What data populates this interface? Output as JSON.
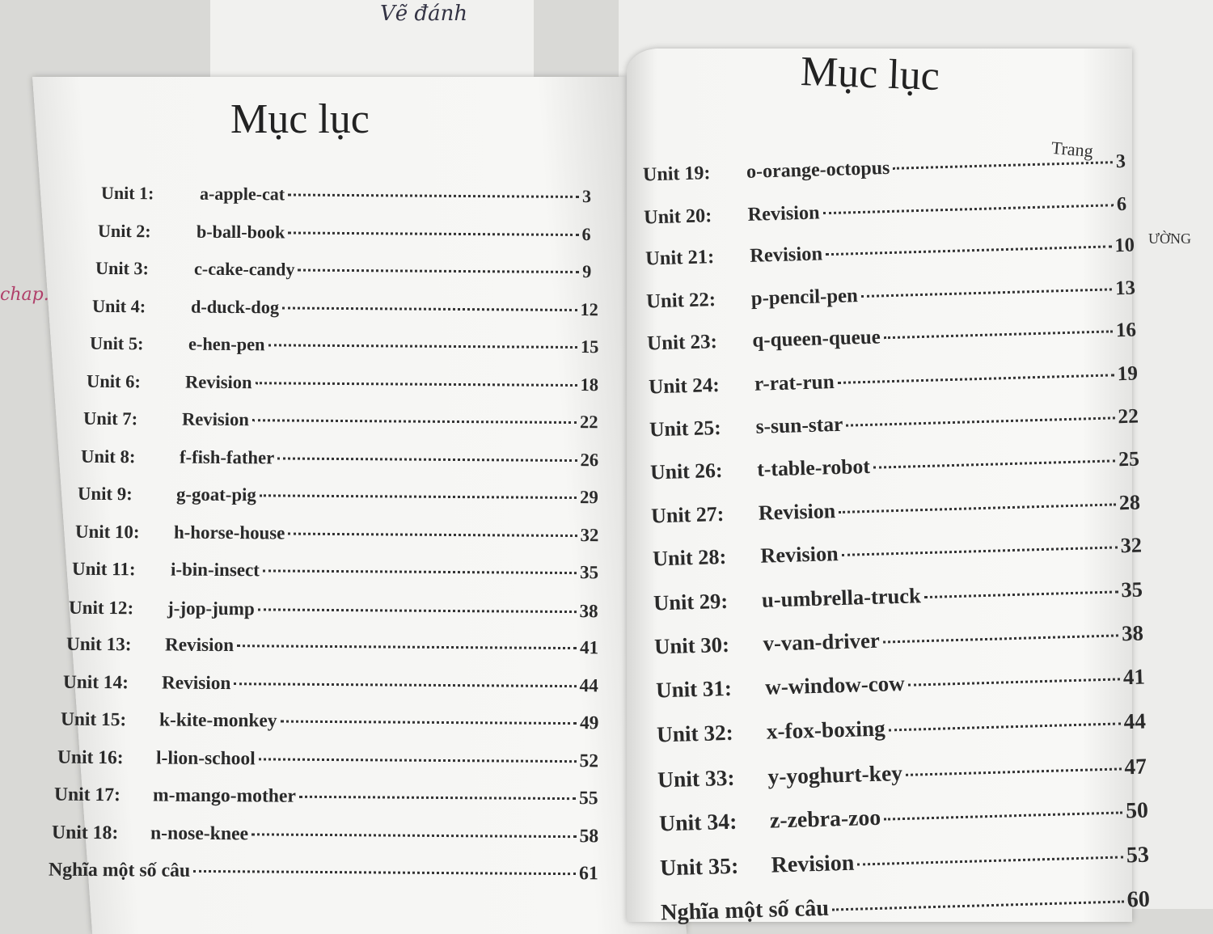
{
  "left_page": {
    "title": "Mục lục",
    "entries": [
      {
        "unit": "Unit 1:",
        "name": "a-apple-cat",
        "page": "3"
      },
      {
        "unit": "Unit 2:",
        "name": "b-ball-book",
        "page": "6"
      },
      {
        "unit": "Unit 3:",
        "name": "c-cake-candy",
        "page": "9"
      },
      {
        "unit": "Unit 4:",
        "name": "d-duck-dog",
        "page": "12"
      },
      {
        "unit": "Unit 5:",
        "name": "e-hen-pen",
        "page": "15"
      },
      {
        "unit": "Unit 6:",
        "name": "Revision",
        "page": "18"
      },
      {
        "unit": "Unit 7:",
        "name": "Revision",
        "page": "22"
      },
      {
        "unit": "Unit 8:",
        "name": "f-fish-father",
        "page": "26"
      },
      {
        "unit": "Unit 9:",
        "name": "g-goat-pig",
        "page": "29"
      },
      {
        "unit": "Unit 10:",
        "name": "h-horse-house",
        "page": "32"
      },
      {
        "unit": "Unit 11:",
        "name": "i-bin-insect",
        "page": "35"
      },
      {
        "unit": "Unit 12:",
        "name": "j-jop-jump",
        "page": "38"
      },
      {
        "unit": "Unit 13:",
        "name": "Revision",
        "page": "41"
      },
      {
        "unit": "Unit 14:",
        "name": "Revision",
        "page": "44"
      },
      {
        "unit": "Unit 15:",
        "name": "k-kite-monkey",
        "page": "49"
      },
      {
        "unit": "Unit 16:",
        "name": "l-lion-school",
        "page": "52"
      },
      {
        "unit": "Unit 17:",
        "name": "m-mango-mother",
        "page": "55"
      },
      {
        "unit": "Unit 18:",
        "name": "n-nose-knee",
        "page": "58"
      },
      {
        "unit": "",
        "name": "Nghĩa một số câu",
        "page": "61"
      }
    ]
  },
  "right_page": {
    "title": "Mục lục",
    "page_label": "Trang",
    "entries": [
      {
        "unit": "Unit 19:",
        "name": "o-orange-octopus",
        "page": "3"
      },
      {
        "unit": "Unit 20:",
        "name": "Revision",
        "page": "6"
      },
      {
        "unit": "Unit 21:",
        "name": "Revision",
        "page": "10"
      },
      {
        "unit": "Unit 22:",
        "name": "p-pencil-pen",
        "page": "13"
      },
      {
        "unit": "Unit 23:",
        "name": "q-queen-queue",
        "page": "16"
      },
      {
        "unit": "Unit 24:",
        "name": "r-rat-run",
        "page": "19"
      },
      {
        "unit": "Unit 25:",
        "name": "s-sun-star",
        "page": "22"
      },
      {
        "unit": "Unit 26:",
        "name": "t-table-robot",
        "page": "25"
      },
      {
        "unit": "Unit 27:",
        "name": "Revision",
        "page": "28"
      },
      {
        "unit": "Unit 28:",
        "name": "Revision",
        "page": "32"
      },
      {
        "unit": "Unit 29:",
        "name": "u-umbrella-truck",
        "page": "35"
      },
      {
        "unit": "Unit 30:",
        "name": "v-van-driver",
        "page": "38"
      },
      {
        "unit": "Unit 31:",
        "name": "w-window-cow",
        "page": "41"
      },
      {
        "unit": "Unit 32:",
        "name": "x-fox-boxing",
        "page": "44"
      },
      {
        "unit": "Unit 33:",
        "name": "y-yoghurt-key",
        "page": "47"
      },
      {
        "unit": "Unit 34:",
        "name": "z-zebra-zoo",
        "page": "50"
      },
      {
        "unit": "Unit 35:",
        "name": "Revision",
        "page": "53"
      },
      {
        "unit": "",
        "name": "Nghĩa một số câu",
        "page": "60"
      }
    ]
  },
  "background": {
    "handwriting_top": "Vẽ đánh",
    "handwriting_left": "chap.",
    "side_text": "ƯỜNG"
  }
}
